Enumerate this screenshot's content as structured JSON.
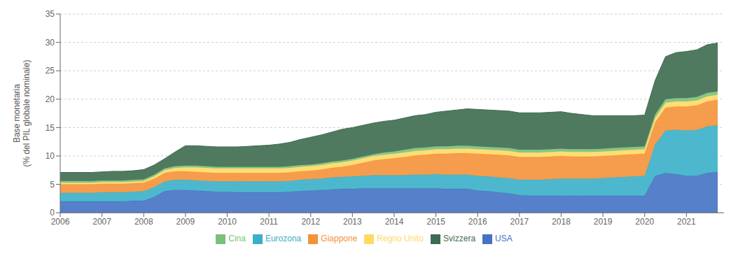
{
  "chart_data": {
    "type": "area",
    "stacked": true,
    "ylabel": "Base monetaria\n(% del PIL globale nominale)",
    "x": [
      2006.0,
      2006.25,
      2006.5,
      2006.75,
      2007.0,
      2007.25,
      2007.5,
      2007.75,
      2008.0,
      2008.25,
      2008.5,
      2008.75,
      2009.0,
      2009.25,
      2009.5,
      2009.75,
      2010.0,
      2010.25,
      2010.5,
      2010.75,
      2011.0,
      2011.25,
      2011.5,
      2011.75,
      2012.0,
      2012.25,
      2012.5,
      2012.75,
      2013.0,
      2013.25,
      2013.5,
      2013.75,
      2014.0,
      2014.25,
      2014.5,
      2014.75,
      2015.0,
      2015.25,
      2015.5,
      2015.75,
      2016.0,
      2016.25,
      2016.5,
      2016.75,
      2017.0,
      2017.25,
      2017.5,
      2017.75,
      2018.0,
      2018.25,
      2018.5,
      2018.75,
      2019.0,
      2019.25,
      2019.5,
      2019.75,
      2020.0,
      2020.25,
      2020.5,
      2020.75,
      2021.0,
      2021.25,
      2021.5,
      2021.75
    ],
    "xlim": [
      2006.0,
      2021.9
    ],
    "xticks": [
      2006,
      2007,
      2008,
      2009,
      2010,
      2011,
      2012,
      2013,
      2014,
      2015,
      2016,
      2017,
      2018,
      2019,
      2020,
      2021
    ],
    "ylim": [
      0,
      35
    ],
    "yticks": [
      0,
      5,
      10,
      15,
      20,
      25,
      30,
      35
    ],
    "grid": "y",
    "legend": "bottom",
    "series": [
      {
        "name": "USA",
        "color": "#4472c4",
        "values": [
          2.0,
          2.0,
          2.0,
          2.0,
          2.0,
          2.0,
          2.0,
          2.1,
          2.1,
          2.8,
          3.8,
          4.0,
          4.0,
          3.9,
          3.8,
          3.7,
          3.7,
          3.6,
          3.6,
          3.6,
          3.6,
          3.6,
          3.7,
          3.8,
          3.9,
          4.0,
          4.1,
          4.2,
          4.2,
          4.3,
          4.3,
          4.3,
          4.3,
          4.3,
          4.3,
          4.3,
          4.3,
          4.2,
          4.2,
          4.2,
          3.9,
          3.8,
          3.6,
          3.4,
          3.1,
          3.0,
          3.0,
          3.0,
          3.0,
          3.0,
          3.0,
          3.0,
          3.0,
          3.0,
          3.0,
          3.0,
          3.0,
          6.5,
          7.0,
          6.8,
          6.5,
          6.5,
          7.0,
          7.2
        ]
      },
      {
        "name": "Eurozona",
        "color": "#3ab0c8",
        "values": [
          1.5,
          1.5,
          1.5,
          1.5,
          1.6,
          1.6,
          1.6,
          1.6,
          1.7,
          1.7,
          1.7,
          1.8,
          1.8,
          1.8,
          1.8,
          1.8,
          1.8,
          1.9,
          1.9,
          1.9,
          1.9,
          1.9,
          1.9,
          2.0,
          2.0,
          2.0,
          2.1,
          2.1,
          2.2,
          2.2,
          2.3,
          2.3,
          2.3,
          2.3,
          2.4,
          2.4,
          2.5,
          2.5,
          2.5,
          2.5,
          2.6,
          2.6,
          2.6,
          2.7,
          2.7,
          2.8,
          2.8,
          2.9,
          3.0,
          3.0,
          3.0,
          3.0,
          3.1,
          3.2,
          3.3,
          3.4,
          3.5,
          5.5,
          7.5,
          7.8,
          8.0,
          8.1,
          8.2,
          8.2
        ]
      },
      {
        "name": "Giappone",
        "color": "#f4923a",
        "values": [
          1.5,
          1.5,
          1.5,
          1.5,
          1.5,
          1.5,
          1.5,
          1.5,
          1.5,
          1.5,
          1.5,
          1.5,
          1.5,
          1.5,
          1.5,
          1.5,
          1.5,
          1.5,
          1.5,
          1.5,
          1.5,
          1.5,
          1.5,
          1.5,
          1.5,
          1.6,
          1.7,
          1.8,
          2.0,
          2.3,
          2.6,
          2.8,
          3.0,
          3.2,
          3.4,
          3.5,
          3.6,
          3.7,
          3.8,
          3.8,
          3.9,
          3.9,
          4.0,
          4.0,
          4.0,
          4.0,
          4.0,
          4.0,
          4.0,
          3.9,
          3.9,
          3.9,
          3.9,
          3.9,
          3.9,
          3.9,
          3.9,
          3.9,
          4.0,
          4.1,
          4.2,
          4.3,
          4.4,
          4.5
        ]
      },
      {
        "name": "Regno Unito",
        "color": "#ffd966",
        "values": [
          0.3,
          0.3,
          0.3,
          0.3,
          0.3,
          0.3,
          0.3,
          0.3,
          0.3,
          0.4,
          0.5,
          0.6,
          0.7,
          0.8,
          0.8,
          0.8,
          0.8,
          0.8,
          0.8,
          0.8,
          0.8,
          0.8,
          0.8,
          0.8,
          0.8,
          0.8,
          0.8,
          0.8,
          0.8,
          0.8,
          0.8,
          0.8,
          0.8,
          0.8,
          0.8,
          0.8,
          0.8,
          0.8,
          0.8,
          0.8,
          0.8,
          0.8,
          0.8,
          0.8,
          0.8,
          0.8,
          0.8,
          0.8,
          0.8,
          0.8,
          0.8,
          0.8,
          0.8,
          0.8,
          0.8,
          0.8,
          0.8,
          0.8,
          0.9,
          0.9,
          0.9,
          0.9,
          0.9,
          0.9
        ]
      },
      {
        "name": "Cina",
        "color": "#7ac17c",
        "values": [
          0.3,
          0.3,
          0.3,
          0.3,
          0.3,
          0.3,
          0.3,
          0.3,
          0.3,
          0.3,
          0.3,
          0.3,
          0.3,
          0.3,
          0.3,
          0.3,
          0.3,
          0.3,
          0.3,
          0.3,
          0.3,
          0.3,
          0.3,
          0.3,
          0.3,
          0.3,
          0.3,
          0.3,
          0.3,
          0.3,
          0.3,
          0.4,
          0.4,
          0.5,
          0.5,
          0.5,
          0.5,
          0.5,
          0.5,
          0.5,
          0.5,
          0.5,
          0.5,
          0.5,
          0.5,
          0.5,
          0.5,
          0.5,
          0.5,
          0.5,
          0.5,
          0.5,
          0.5,
          0.5,
          0.5,
          0.5,
          0.5,
          0.6,
          0.6,
          0.6,
          0.6,
          0.6,
          0.6,
          0.6
        ]
      },
      {
        "name": "Svizzera",
        "color": "#3d6b4f",
        "values": [
          1.5,
          1.5,
          1.5,
          1.5,
          1.5,
          1.6,
          1.6,
          1.6,
          1.7,
          1.7,
          1.7,
          2.5,
          3.5,
          3.5,
          3.5,
          3.5,
          3.5,
          3.5,
          3.6,
          3.7,
          3.8,
          4.0,
          4.2,
          4.5,
          4.8,
          5.0,
          5.2,
          5.5,
          5.5,
          5.5,
          5.5,
          5.5,
          5.5,
          5.6,
          5.7,
          5.8,
          6.0,
          6.2,
          6.3,
          6.5,
          6.5,
          6.5,
          6.5,
          6.5,
          6.5,
          6.5,
          6.5,
          6.5,
          6.5,
          6.3,
          6.1,
          5.9,
          5.8,
          5.7,
          5.6,
          5.5,
          5.5,
          6.0,
          7.5,
          8.0,
          8.2,
          8.3,
          8.5,
          8.5
        ]
      }
    ]
  }
}
